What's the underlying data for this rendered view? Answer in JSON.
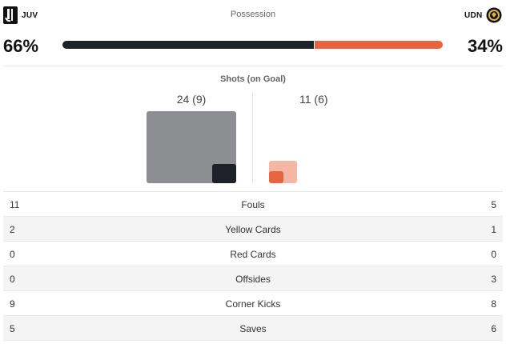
{
  "home": {
    "abbr": "JUV",
    "possession": "66%",
    "possession_value": 66,
    "shots": "24 (9)",
    "shots_total": 24,
    "shots_on": 9,
    "color": "#1e2128"
  },
  "away": {
    "abbr": "UDN",
    "possession": "34%",
    "possession_value": 34,
    "shots": "11 (6)",
    "shots_total": 11,
    "shots_on": 6,
    "color": "#e8643f"
  },
  "possession_label": "Possession",
  "shots_label": "Shots (on Goal)",
  "stats": [
    {
      "home": "11",
      "label": "Fouls",
      "away": "5"
    },
    {
      "home": "2",
      "label": "Yellow Cards",
      "away": "1"
    },
    {
      "home": "0",
      "label": "Red Cards",
      "away": "0"
    },
    {
      "home": "0",
      "label": "Offsides",
      "away": "3"
    },
    {
      "home": "9",
      "label": "Corner Kicks",
      "away": "8"
    },
    {
      "home": "5",
      "label": "Saves",
      "away": "6"
    }
  ]
}
